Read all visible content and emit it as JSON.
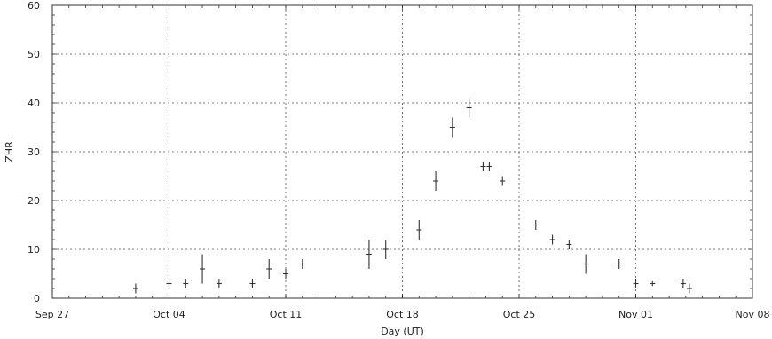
{
  "chart_data": {
    "type": "scatter",
    "xlabel": "Day (UT)",
    "ylabel": "ZHR",
    "xlim": [
      "Sep 27",
      "Nov 08"
    ],
    "ylim": [
      0,
      60
    ],
    "x_ticks": [
      "Sep 27",
      "Oct 04",
      "Oct 11",
      "Oct 18",
      "Oct 25",
      "Nov 01",
      "Nov 08"
    ],
    "y_ticks": [
      0,
      10,
      20,
      30,
      40,
      50,
      60
    ],
    "grid": true,
    "error_bars": true,
    "points": [
      {
        "date": "Oct 02",
        "y": 2,
        "err": 1
      },
      {
        "date": "Oct 04",
        "y": 3,
        "err": 1
      },
      {
        "date": "Oct 05",
        "y": 3,
        "err": 1
      },
      {
        "date": "Oct 06",
        "y": 6,
        "err": 3
      },
      {
        "date": "Oct 07",
        "y": 3,
        "err": 1
      },
      {
        "date": "Oct 09",
        "y": 3,
        "err": 1
      },
      {
        "date": "Oct 10",
        "y": 6,
        "err": 2
      },
      {
        "date": "Oct 11",
        "y": 5,
        "err": 1
      },
      {
        "date": "Oct 12",
        "y": 7,
        "err": 1
      },
      {
        "date": "Oct 16",
        "y": 9,
        "err": 3
      },
      {
        "date": "Oct 17",
        "y": 10,
        "err": 2
      },
      {
        "date": "Oct 19",
        "y": 14,
        "err": 2
      },
      {
        "date": "Oct 20",
        "y": 24,
        "err": 2
      },
      {
        "date": "Oct 21",
        "y": 35,
        "err": 2
      },
      {
        "date": "Oct 22",
        "y": 39,
        "err": 2
      },
      {
        "date": "Oct 23",
        "y": 27,
        "err": 1
      },
      {
        "date": "Oct 23",
        "y": 27,
        "err": 1
      },
      {
        "date": "Oct 24",
        "y": 24,
        "err": 1
      },
      {
        "date": "Oct 26",
        "y": 15,
        "err": 1
      },
      {
        "date": "Oct 27",
        "y": 12,
        "err": 1
      },
      {
        "date": "Oct 28",
        "y": 11,
        "err": 1
      },
      {
        "date": "Oct 29",
        "y": 7,
        "err": 2
      },
      {
        "date": "Oct 31",
        "y": 7,
        "err": 1
      },
      {
        "date": "Nov 01",
        "y": 3,
        "err": 1
      },
      {
        "date": "Nov 02",
        "y": 3,
        "err": 0.5
      },
      {
        "date": "Nov 04",
        "y": 3,
        "err": 1
      },
      {
        "date": "Nov 04",
        "y": 2,
        "err": 1
      }
    ]
  }
}
